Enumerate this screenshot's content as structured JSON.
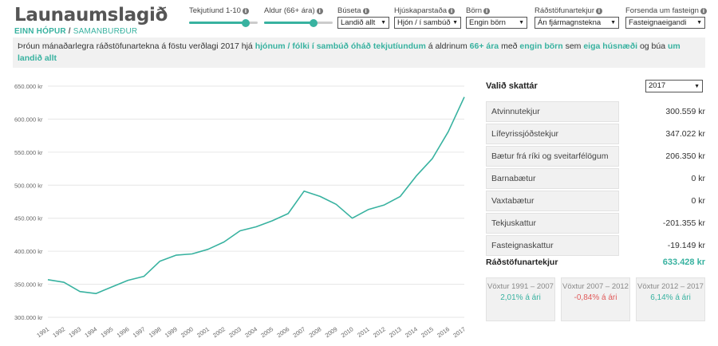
{
  "header": {
    "title": "Launaumslagið",
    "subtitle_active": "EINN HÓPUR",
    "subtitle_sep": "/",
    "subtitle_inactive": "SAMANBURÐUR"
  },
  "controls": {
    "tekjutiund": {
      "label": "Tekjutíund 1-10",
      "level": 0.82
    },
    "aldur": {
      "label": "Aldur (66+ ára)",
      "level": 0.72
    },
    "buseta": {
      "label": "Búseta",
      "value": "Landið allt"
    },
    "hjuskaparstada": {
      "label": "Hjúskaparstaða",
      "value": "Hjón / í sambúð"
    },
    "born": {
      "label": "Börn",
      "value": "Engin börn"
    },
    "radstofunartekjur": {
      "label": "Ráðstöfunartekjur",
      "value": "Án fjármagnstekna"
    },
    "forsenda": {
      "label": "Forsenda um fasteign",
      "value": "Fasteignaeigandi"
    }
  },
  "banner": {
    "t1": "Þróun mánaðarlegra ráðstöfunartekna á föstu verðlagi 2017 hjá ",
    "h1": "hjónum / fólki í sambúð óháð tekjutíundum",
    "t2": " á aldrinum ",
    "h2": "66+ ára",
    "t3": " með ",
    "h3": "engin börn",
    "t4": " sem ",
    "h4": "eiga húsnæði",
    "t5": " og búa ",
    "h5": "um landið allt"
  },
  "panel": {
    "title": "Valið skattár",
    "year": "2017",
    "rows": [
      {
        "label": "Atvinnutekjur",
        "value": "300.559 kr"
      },
      {
        "label": "Lífeyrissjóðstekjur",
        "value": "347.022 kr"
      },
      {
        "label": "Bætur frá ríki og sveitarfélögum",
        "value": "206.350 kr"
      },
      {
        "label": "Barnabætur",
        "value": "0 kr"
      },
      {
        "label": "Vaxtabætur",
        "value": "0 kr"
      },
      {
        "label": "Tekjuskattur",
        "value": "-201.355 kr"
      },
      {
        "label": "Fasteignaskattur",
        "value": "-19.149 kr"
      }
    ],
    "total_label": "Ráðstöfunartekjur",
    "total_value": "633.428 kr",
    "growth": [
      {
        "label": "Vöxtur 1991 – 2007",
        "value": "2,01% á ári",
        "sign": "pos"
      },
      {
        "label": "Vöxtur 2007 – 2012",
        "value": "-0,84% á ári",
        "sign": "neg"
      },
      {
        "label": "Vöxtur 2012 – 2017",
        "value": "6,14% á ári",
        "sign": "pos"
      }
    ]
  },
  "colors": {
    "accent": "#38b2a0",
    "negative": "#e05a5a",
    "panel_bg": "#f1f1f1"
  },
  "chart_data": {
    "type": "line",
    "x": [
      "1991",
      "1992",
      "1993",
      "1994",
      "1995",
      "1996",
      "1997",
      "1998",
      "1999",
      "2000",
      "2001",
      "2002",
      "2003",
      "2004",
      "2005",
      "2006",
      "2007",
      "2008",
      "2009",
      "2010",
      "2011",
      "2012",
      "2013",
      "2014",
      "2015",
      "2016",
      "2017"
    ],
    "series": [
      {
        "values": [
          357000,
          353000,
          339000,
          336000,
          346000,
          356000,
          362000,
          385000,
          394000,
          396000,
          403000,
          414000,
          431000,
          437000,
          446000,
          457000,
          491000,
          483000,
          471000,
          450000,
          463000,
          470000,
          483000,
          514000,
          540000,
          581000,
          633428
        ]
      }
    ],
    "yticks": [
      "650.000 kr",
      "600.000 kr",
      "550.000 kr",
      "500.000 kr",
      "450.000 kr",
      "400.000 kr",
      "350.000 kr",
      "300.000 kr"
    ],
    "ytick_values": [
      650000,
      600000,
      550000,
      500000,
      450000,
      400000,
      350000,
      300000
    ],
    "ylim": [
      300000,
      650000
    ],
    "grid": true
  }
}
